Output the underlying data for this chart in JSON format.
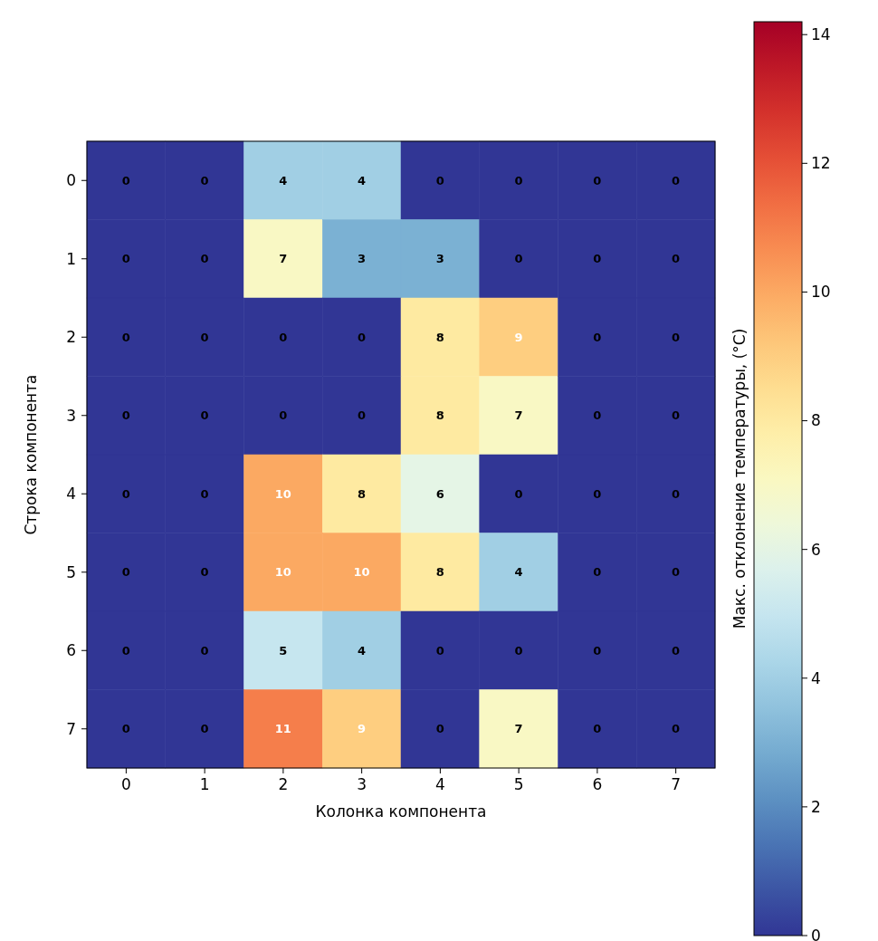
{
  "chart_data": {
    "type": "heatmap",
    "xlabel": "Колонка компонента",
    "ylabel": "Строка компонента",
    "clabel": "Макс. отклонение температуры, (°C)",
    "categories": [
      "0",
      "1",
      "2",
      "3",
      "4",
      "5",
      "6",
      "7"
    ],
    "y_categories": [
      "0",
      "1",
      "2",
      "3",
      "4",
      "5",
      "6",
      "7"
    ],
    "cells": [
      [
        0,
        0,
        4,
        4,
        0,
        0,
        0,
        0
      ],
      [
        0,
        0,
        7,
        3,
        3,
        0,
        0,
        0
      ],
      [
        0,
        0,
        0,
        0,
        8,
        9,
        0,
        0
      ],
      [
        0,
        0,
        0,
        0,
        8,
        7,
        0,
        0
      ],
      [
        0,
        0,
        10,
        8,
        6,
        0,
        0,
        0
      ],
      [
        0,
        0,
        10,
        10,
        8,
        4,
        0,
        0
      ],
      [
        0,
        0,
        5,
        4,
        0,
        0,
        0,
        0
      ],
      [
        0,
        0,
        11,
        9,
        0,
        7,
        0,
        0
      ]
    ],
    "clim": [
      0,
      14.2
    ],
    "cticks": [
      0,
      2,
      4,
      6,
      8,
      10,
      12,
      14
    ],
    "data_labels": true
  }
}
